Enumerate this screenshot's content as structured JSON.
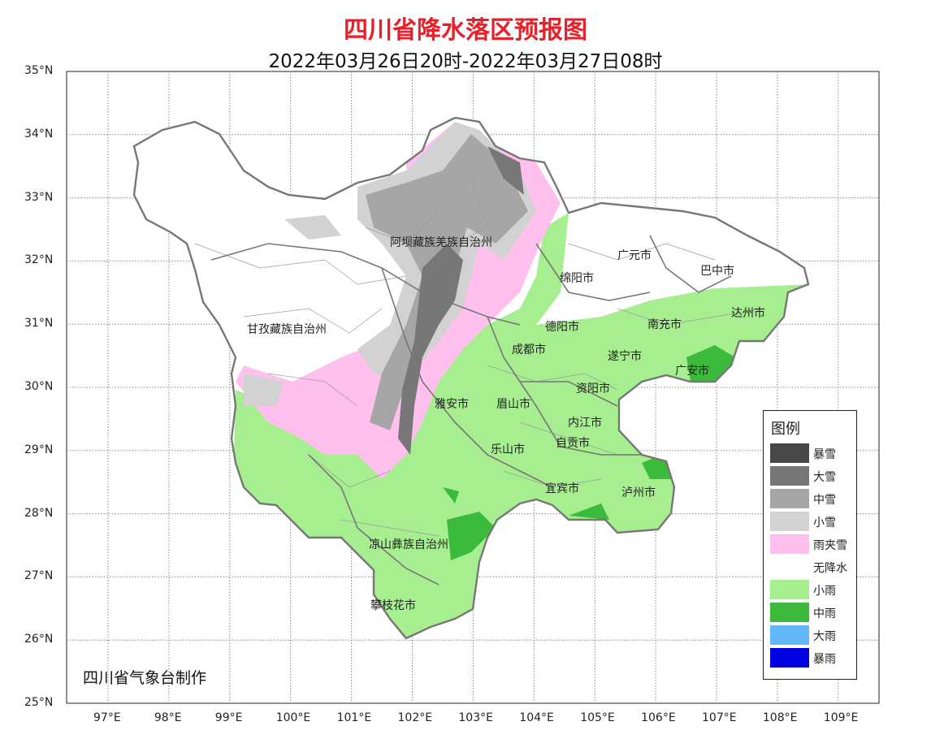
{
  "title": "四川省降水落区预报图",
  "subtitle": "2022年03月26日20时-2022年03月27日08时",
  "credit": "四川省气象台制作",
  "axes": {
    "lat_labels": [
      "35°N",
      "34°N",
      "33°N",
      "32°N",
      "31°N",
      "30°N",
      "29°N",
      "28°N",
      "27°N",
      "26°N",
      "25°N"
    ],
    "lon_labels": [
      "97°E",
      "98°E",
      "99°E",
      "100°E",
      "101°E",
      "102°E",
      "103°E",
      "104°E",
      "105°E",
      "106°E",
      "107°E",
      "108°E",
      "109°E"
    ]
  },
  "legend": {
    "title": "图例",
    "items": [
      {
        "label": "暴雪",
        "color": "#474747"
      },
      {
        "label": "大雪",
        "color": "#777777"
      },
      {
        "label": "中雪",
        "color": "#a6a6a6"
      },
      {
        "label": "小雪",
        "color": "#d2d2d2"
      },
      {
        "label": "雨夹雪",
        "color": "#ffc0ee"
      },
      {
        "label": "无降水",
        "color": "#ffffff"
      },
      {
        "label": "小雨",
        "color": "#a6ee90"
      },
      {
        "label": "中雨",
        "color": "#3cba3c"
      },
      {
        "label": "大雨",
        "color": "#62b8fb"
      },
      {
        "label": "暴雨",
        "color": "#0000e0"
      }
    ]
  },
  "regions": [
    "阿坝藏族羌族自治州",
    "甘孜藏族自治州",
    "广元市",
    "巴中市",
    "绵阳市",
    "达州市",
    "南充市",
    "德阳市",
    "成都市",
    "遂宁市",
    "广安市",
    "资阳市",
    "雅安市",
    "眉山市",
    "内江市",
    "自贡市",
    "乐山市",
    "宜宾市",
    "泸州市",
    "凉山彝族自治州",
    "攀枝花市"
  ]
}
